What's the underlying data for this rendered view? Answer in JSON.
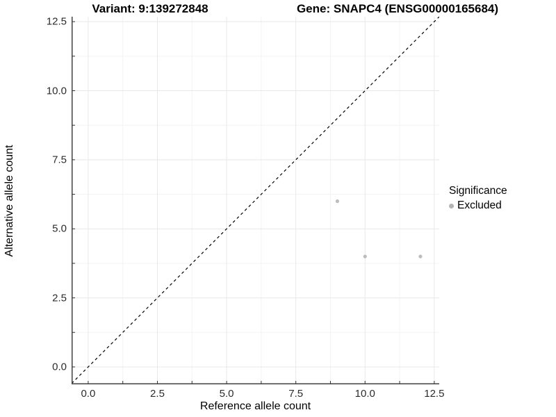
{
  "title": {
    "variant": "Variant: 9:139272848",
    "gene": "Gene: SNAPC4 (ENSG00000165684)"
  },
  "legend": {
    "title": "Significance",
    "items": [
      {
        "label": "Excluded",
        "color": "#b3b3b3"
      }
    ]
  },
  "colors": {
    "point": "#bdbdbd",
    "axis_line": "#404040",
    "tick": "#333333",
    "grid_major": "#e8e8e8",
    "grid_minor": "#f3f3f3",
    "reference_line": "#000000",
    "background": "#ffffff"
  },
  "chart_data": {
    "type": "scatter",
    "title": "Variant: 9:139272848        Gene: SNAPC4 (ENSG00000165684)",
    "xlabel": "Reference allele count",
    "ylabel": "Alternative allele count",
    "xlim": [
      -0.6,
      12.68
    ],
    "ylim": [
      -0.63,
      12.68
    ],
    "x_ticks": {
      "values": [
        0,
        2.5,
        5,
        7.5,
        10,
        12.5
      ],
      "labels": [
        "0.0",
        "2.5",
        "5.0",
        "7.5",
        "10.0",
        "12.5"
      ]
    },
    "y_ticks": {
      "values": [
        0,
        2.5,
        5,
        7.5,
        10,
        12.5
      ],
      "labels": [
        "0.0",
        "2.5",
        "5.0",
        "7.5",
        "10.0",
        "12.5"
      ]
    },
    "minor_tick_values": [
      1.25,
      3.75,
      6.25,
      8.75,
      11.25
    ],
    "grid": true,
    "legend_position": "right",
    "reference_line": {
      "type": "identity",
      "slope": 1,
      "intercept": 0,
      "style": "dashed"
    },
    "series": [
      {
        "name": "Excluded",
        "color": "#bdbdbd",
        "point_radius": 2.6,
        "points": [
          {
            "x": 9,
            "y": 6
          },
          {
            "x": 10,
            "y": 4
          },
          {
            "x": 12,
            "y": 4
          }
        ]
      }
    ]
  }
}
